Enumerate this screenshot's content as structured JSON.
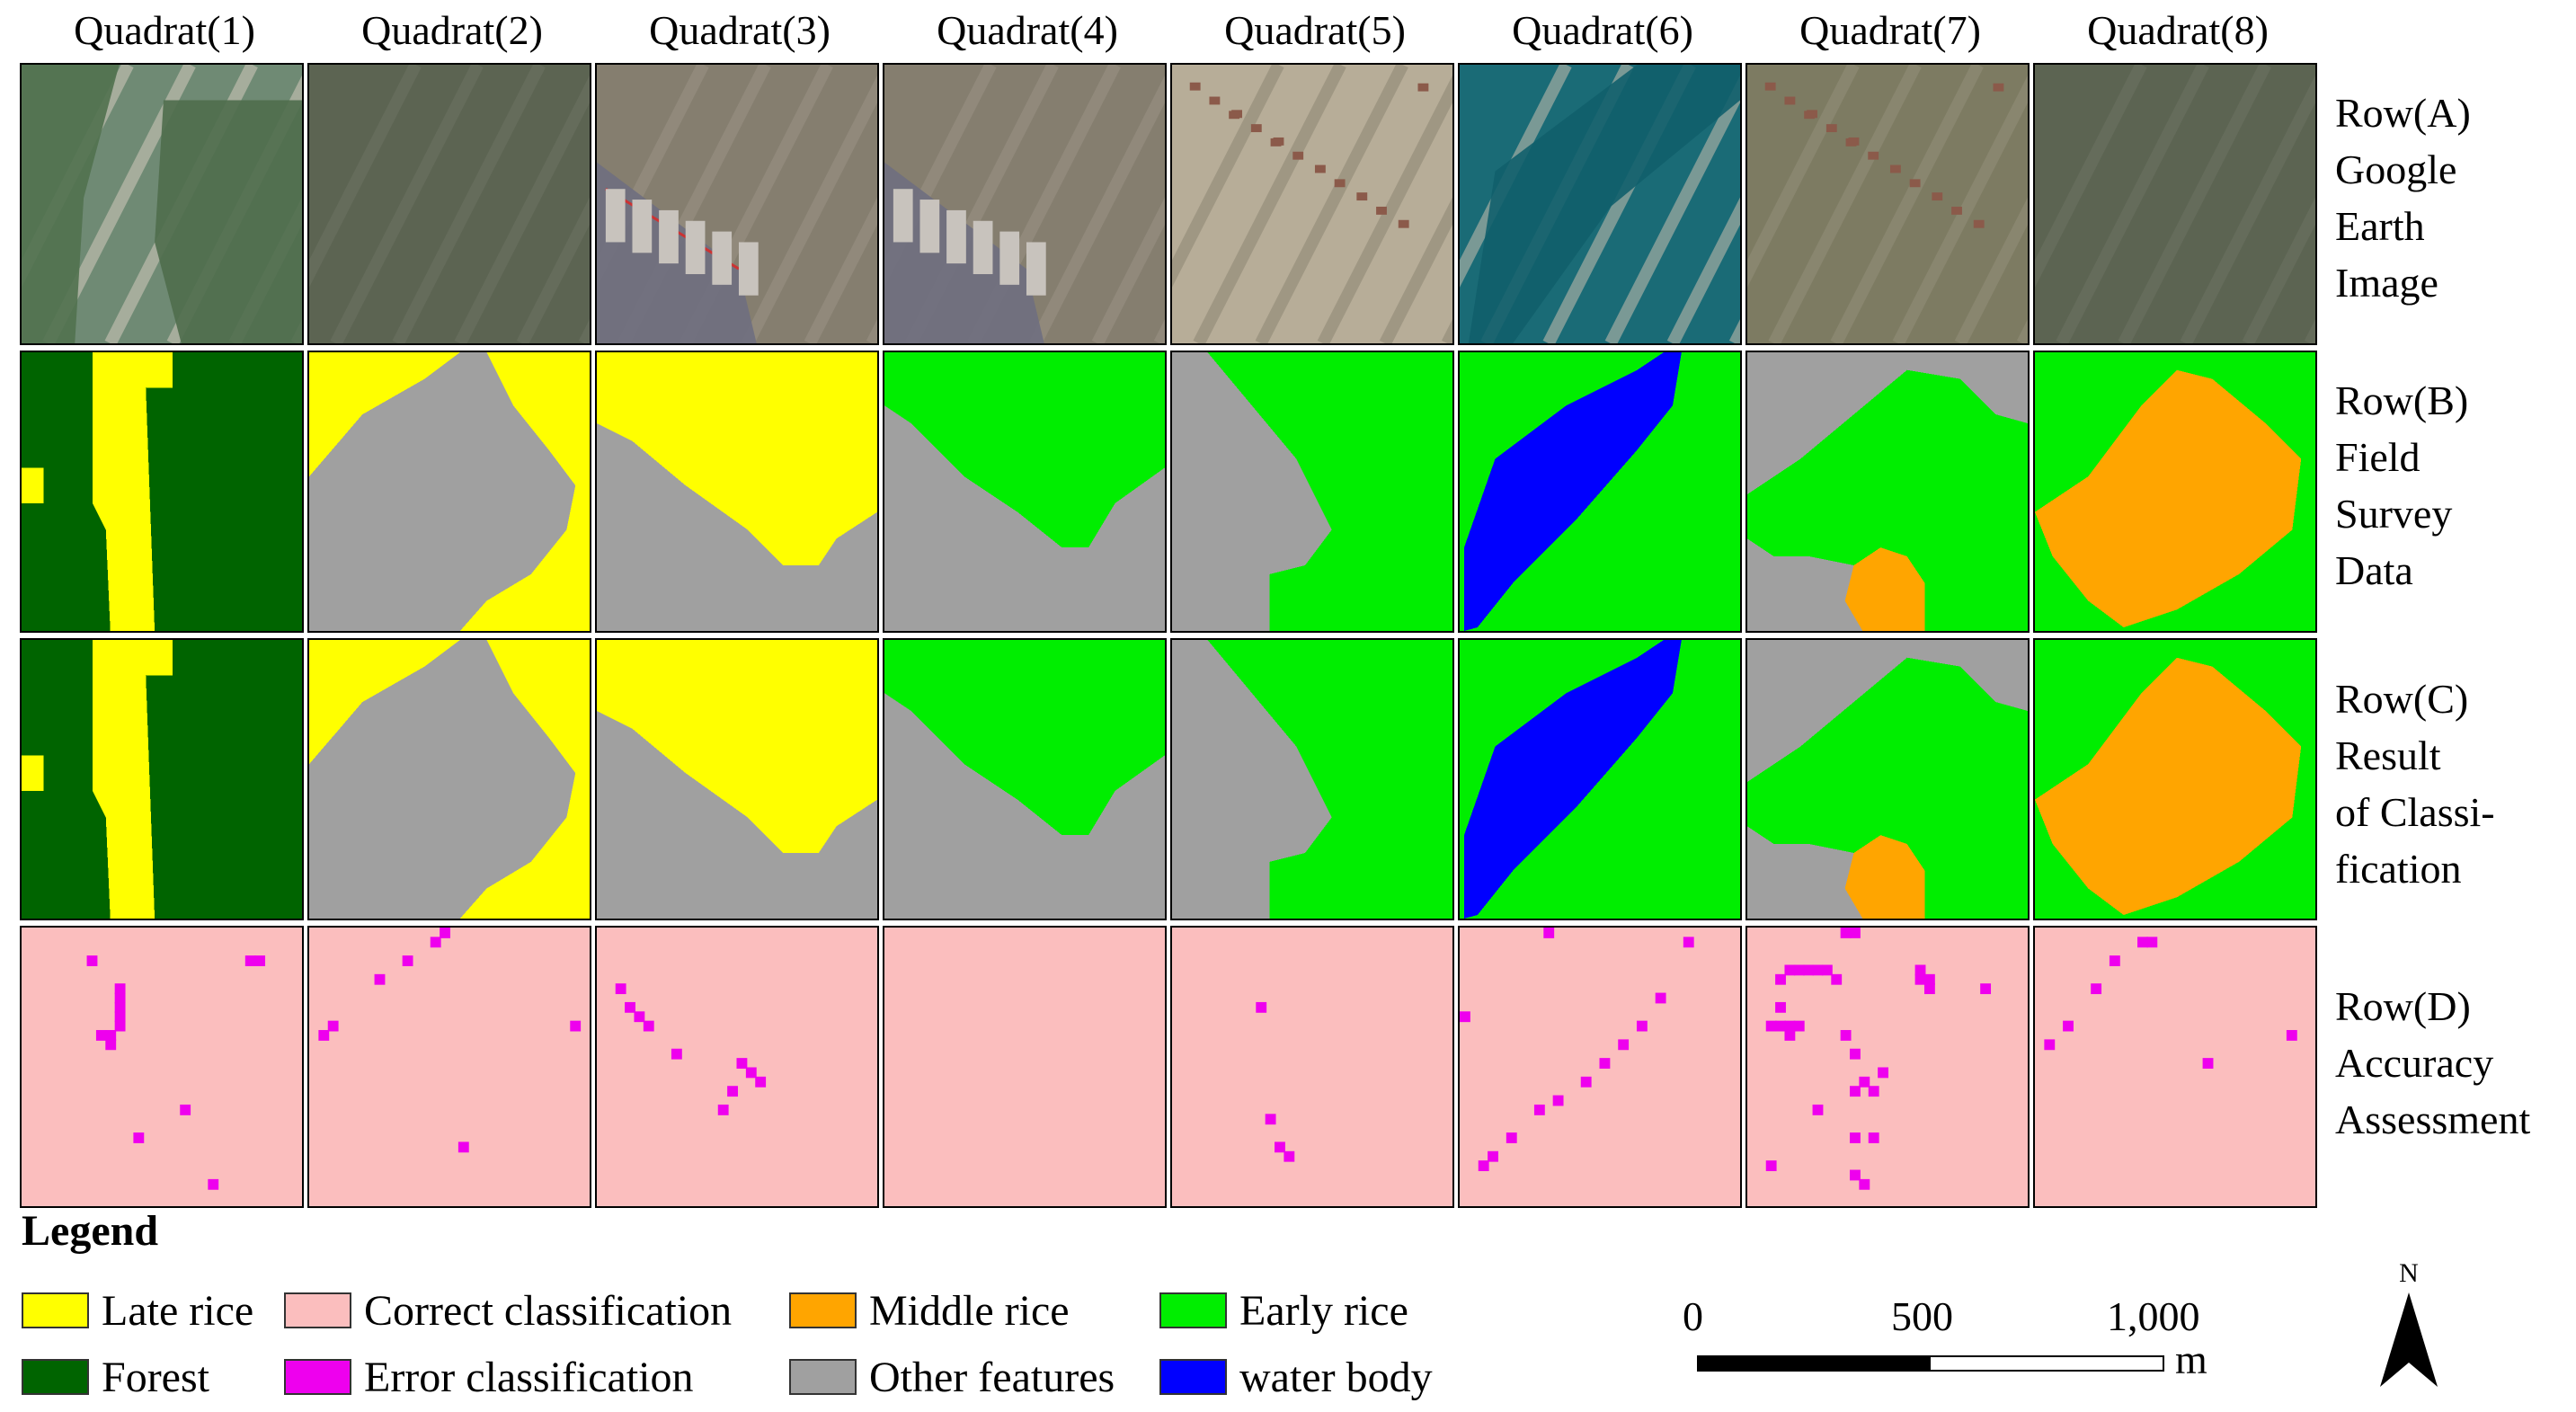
{
  "quadrats": [
    "Quadrat(1)",
    "Quadrat(2)",
    "Quadrat(3)",
    "Quadrat(4)",
    "Quadrat(5)",
    "Quadrat(6)",
    "Quadrat(7)",
    "Quadrat(8)"
  ],
  "rows": [
    {
      "id": "A",
      "lines": [
        "Row(A)",
        "Google",
        "Earth",
        "Image"
      ]
    },
    {
      "id": "B",
      "lines": [
        "Row(B)",
        "Field",
        "Survey",
        "Data"
      ]
    },
    {
      "id": "C",
      "lines": [
        "Row(C)",
        "Result",
        "of Classi-",
        "fication"
      ]
    },
    {
      "id": "D",
      "lines": [
        "Row(D)",
        "Accuracy",
        "Assessment"
      ]
    }
  ],
  "legend": {
    "title": "Legend",
    "items": [
      {
        "label": "Late rice",
        "color": "#ffff00"
      },
      {
        "label": "Correct classification",
        "color": "#fbbebe"
      },
      {
        "label": "Middle rice",
        "color": "#ffa500"
      },
      {
        "label": "Early rice",
        "color": "#00ee00"
      },
      {
        "label": "Forest",
        "color": "#006400"
      },
      {
        "label": "Error classification",
        "color": "#ee00ee"
      },
      {
        "label": "Other features",
        "color": "#a0a0a0"
      },
      {
        "label": "water body",
        "color": "#0000ff"
      }
    ]
  },
  "scale_bar": {
    "ticks": [
      "0",
      "500",
      "1,000"
    ],
    "unit": "m"
  },
  "north_arrow": {
    "label": "N"
  },
  "colors": {
    "late_rice": "#ffff00",
    "early_rice": "#00ee00",
    "middle_rice": "#ffa500",
    "forest": "#006400",
    "other": "#a0a0a0",
    "water": "#0000ff",
    "correct": "#fbbebe",
    "error": "#ee00ee"
  }
}
